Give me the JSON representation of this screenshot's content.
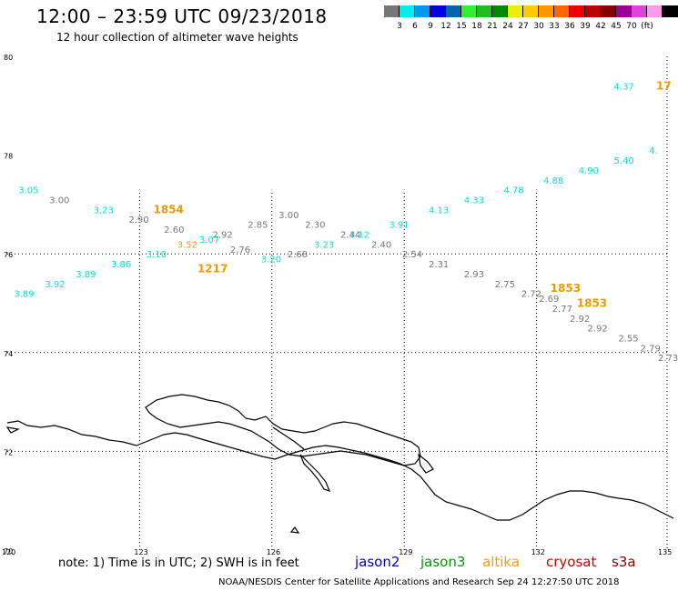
{
  "header": {
    "title": "12:00 – 23:59 UTC 09/23/2018",
    "subtitle": "12 hour collection of altimeter wave heights"
  },
  "colorbar": {
    "colors": [
      "#777777",
      "#00eeee",
      "#0099ee",
      "#0000dd",
      "#0066aa",
      "#33ee33",
      "#22bb22",
      "#008800",
      "#eeee00",
      "#ffcc00",
      "#ff9900",
      "#ff6600",
      "#ee0000",
      "#bb0000",
      "#880000",
      "#990099",
      "#dd44dd",
      "#ff99ee",
      "#000000"
    ],
    "labels": [
      "3",
      "6",
      "9",
      "12",
      "15",
      "18",
      "21",
      "24",
      "27",
      "30",
      "33",
      "36",
      "39",
      "42",
      "45",
      "70",
      "(ft)"
    ]
  },
  "axes": {
    "lat_labels": [
      "80",
      "78",
      "76",
      "74",
      "72",
      "70"
    ],
    "lon_labels": [
      "120",
      "123",
      "126",
      "129",
      "132",
      "135"
    ]
  },
  "chart_data": {
    "type": "map",
    "lon_range": [
      120,
      135
    ],
    "lat_range": [
      70,
      80
    ],
    "wave_heights": [
      {
        "lon": 120.5,
        "lat": 77.3,
        "v": "3.05",
        "sat": "jason2"
      },
      {
        "lon": 121.2,
        "lat": 77.1,
        "v": "3.00",
        "sat": "s3a"
      },
      {
        "lon": 122.2,
        "lat": 76.9,
        "v": "3.23",
        "sat": "jason2"
      },
      {
        "lon": 123.0,
        "lat": 76.7,
        "v": "2.90",
        "sat": "s3a"
      },
      {
        "lon": 123.8,
        "lat": 76.5,
        "v": "2.60",
        "sat": "s3a"
      },
      {
        "lon": 124.6,
        "lat": 76.3,
        "v": "3.07",
        "sat": "jason2"
      },
      {
        "lon": 125.3,
        "lat": 76.1,
        "v": "2.76",
        "sat": "s3a"
      },
      {
        "lon": 126.0,
        "lat": 75.9,
        "v": "3.20",
        "sat": "jason2"
      },
      {
        "lon": 126.6,
        "lat": 76.0,
        "v": "2.68",
        "sat": "s3a"
      },
      {
        "lon": 127.2,
        "lat": 76.2,
        "v": "3.23",
        "sat": "jason2"
      },
      {
        "lon": 128.0,
        "lat": 76.4,
        "v": "3.12",
        "sat": "jason2"
      },
      {
        "lon": 128.9,
        "lat": 76.6,
        "v": "3.91",
        "sat": "jason2"
      },
      {
        "lon": 129.8,
        "lat": 76.9,
        "v": "4.13",
        "sat": "jason2"
      },
      {
        "lon": 130.6,
        "lat": 77.1,
        "v": "4.33",
        "sat": "jason2"
      },
      {
        "lon": 131.5,
        "lat": 77.3,
        "v": "4.78",
        "sat": "jason2"
      },
      {
        "lon": 132.4,
        "lat": 77.5,
        "v": "4.88",
        "sat": "jason2"
      },
      {
        "lon": 133.2,
        "lat": 77.7,
        "v": "4.90",
        "sat": "jason2"
      },
      {
        "lon": 134.0,
        "lat": 77.9,
        "v": "5.40",
        "sat": "jason2"
      },
      {
        "lon": 134.8,
        "lat": 78.1,
        "v": "4.",
        "sat": "jason2"
      },
      {
        "lon": 134.0,
        "lat": 79.4,
        "v": "4.37",
        "sat": "jason2"
      },
      {
        "lon": 120.4,
        "lat": 75.2,
        "v": "3.89",
        "sat": "jason2"
      },
      {
        "lon": 121.1,
        "lat": 75.4,
        "v": "3.92",
        "sat": "jason2"
      },
      {
        "lon": 121.8,
        "lat": 75.6,
        "v": "3.89",
        "sat": "jason2"
      },
      {
        "lon": 122.6,
        "lat": 75.8,
        "v": "3.86",
        "sat": "jason2"
      },
      {
        "lon": 123.4,
        "lat": 76.0,
        "v": "3.10",
        "sat": "jason2"
      },
      {
        "lon": 124.1,
        "lat": 76.2,
        "v": "3.52",
        "sat": "altika"
      },
      {
        "lon": 124.9,
        "lat": 76.4,
        "v": "2.92",
        "sat": "s3a"
      },
      {
        "lon": 125.7,
        "lat": 76.6,
        "v": "2.85",
        "sat": "s3a"
      },
      {
        "lon": 126.4,
        "lat": 76.8,
        "v": "3.00",
        "sat": "s3a"
      },
      {
        "lon": 127.0,
        "lat": 76.6,
        "v": "2.30",
        "sat": "s3a"
      },
      {
        "lon": 127.8,
        "lat": 76.4,
        "v": "2.44",
        "sat": "s3a"
      },
      {
        "lon": 128.5,
        "lat": 76.2,
        "v": "2.40",
        "sat": "s3a"
      },
      {
        "lon": 129.2,
        "lat": 76.0,
        "v": "2.54",
        "sat": "s3a"
      },
      {
        "lon": 129.8,
        "lat": 75.8,
        "v": "2.31",
        "sat": "s3a"
      },
      {
        "lon": 130.6,
        "lat": 75.6,
        "v": "2.93",
        "sat": "s3a"
      },
      {
        "lon": 131.3,
        "lat": 75.4,
        "v": "2.75",
        "sat": "s3a"
      },
      {
        "lon": 131.9,
        "lat": 75.2,
        "v": "2.72",
        "sat": "s3a"
      },
      {
        "lon": 132.3,
        "lat": 75.1,
        "v": "2.69",
        "sat": "s3a"
      },
      {
        "lon": 132.6,
        "lat": 74.9,
        "v": "2.77",
        "sat": "s3a"
      },
      {
        "lon": 133.0,
        "lat": 74.7,
        "v": "2.92",
        "sat": "s3a"
      },
      {
        "lon": 133.4,
        "lat": 74.5,
        "v": "2.92",
        "sat": "s3a"
      },
      {
        "lon": 134.1,
        "lat": 74.3,
        "v": "2.55",
        "sat": "s3a"
      },
      {
        "lon": 134.6,
        "lat": 74.1,
        "v": "2.79",
        "sat": "s3a"
      },
      {
        "lon": 135.0,
        "lat": 73.9,
        "v": "2.73",
        "sat": "s3a"
      }
    ],
    "time_labels": [
      {
        "lon": 123.6,
        "lat": 76.9,
        "v": "1854",
        "sat": "altika"
      },
      {
        "lon": 124.6,
        "lat": 75.7,
        "v": "1217",
        "sat": "altika"
      },
      {
        "lon": 132.6,
        "lat": 75.3,
        "v": "1853",
        "sat": "altika"
      },
      {
        "lon": 133.2,
        "lat": 75.0,
        "v": "1853",
        "sat": "altika"
      },
      {
        "lon": 135.0,
        "lat": 79.4,
        "v": "17",
        "sat": "altika"
      }
    ]
  },
  "satellite_colors": {
    "jason2": "#00dddd",
    "jason3": "#009900",
    "altika": "#ee9900",
    "cryosat": "#cc0000",
    "s3a": "#777777"
  },
  "footer": {
    "note": "note:  1) Time is in UTC; 2) SWH is in feet",
    "legend": [
      {
        "label": "jason2",
        "color": "#0000cc"
      },
      {
        "label": "jason3",
        "color": "#009900"
      },
      {
        "label": "altika",
        "color": "#ff9900"
      },
      {
        "label": "cryosat",
        "color": "#cc0000"
      },
      {
        "label": "s3a",
        "color": "#880000"
      }
    ],
    "credit": "NOAA/NESDIS Center for Satellite Applications and Research    Sep 24 12:27:50 UTC 2018"
  }
}
